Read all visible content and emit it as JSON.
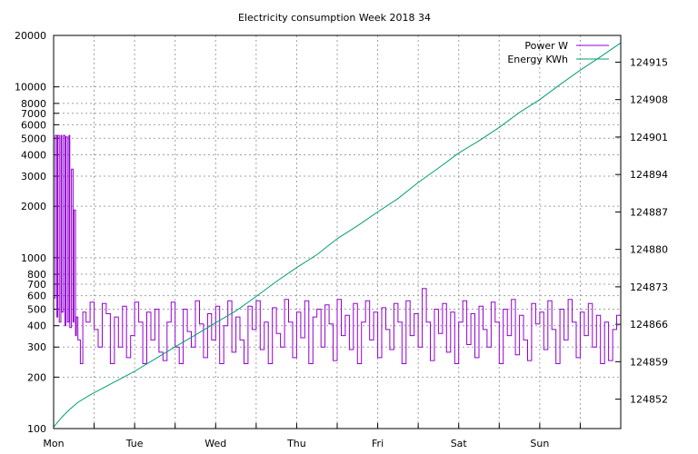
{
  "chart_data": {
    "type": "line",
    "title": "Electricity consumption Week 2018 34",
    "x_ticks": [
      "Mon",
      "Tue",
      "Wed",
      "Thu",
      "Fri",
      "Sat",
      "Sun"
    ],
    "y_left": {
      "scale": "log",
      "range": [
        100,
        20000
      ],
      "tick_labels": [
        "100",
        "200",
        "300",
        "400",
        "500",
        "600",
        "700",
        "800",
        "1000",
        "2000",
        "3000",
        "4000",
        "5000",
        "6000",
        "7000",
        "8000",
        "10000",
        "20000"
      ]
    },
    "y_right": {
      "scale": "linear",
      "range": [
        124846.5,
        124920
      ],
      "tick_labels": [
        "124852",
        "124859",
        "124866",
        "124873",
        "124880",
        "124887",
        "124894",
        "124901",
        "124908",
        "124915"
      ]
    },
    "grid": true,
    "legend_position": "top-right",
    "series": [
      {
        "name": "Power W",
        "color": "#9400d3",
        "axis": "left",
        "x_day": [
          0.0,
          0.02,
          0.04,
          0.05,
          0.07,
          0.09,
          0.1,
          0.12,
          0.14,
          0.15,
          0.17,
          0.19,
          0.2,
          0.22,
          0.24,
          0.25,
          0.27,
          0.28,
          0.3,
          0.33,
          0.36,
          0.4,
          0.45,
          0.5,
          0.55,
          0.6,
          0.65,
          0.7,
          0.75,
          0.8,
          0.85,
          0.9,
          0.95,
          1.0,
          1.05,
          1.1,
          1.15,
          1.2,
          1.25,
          1.3,
          1.35,
          1.4,
          1.45,
          1.5,
          1.55,
          1.6,
          1.65,
          1.7,
          1.75,
          1.8,
          1.85,
          1.9,
          1.95,
          2.0,
          2.05,
          2.1,
          2.15,
          2.2,
          2.25,
          2.3,
          2.35,
          2.4,
          2.45,
          2.5,
          2.55,
          2.6,
          2.65,
          2.7,
          2.75,
          2.8,
          2.85,
          2.9,
          2.95,
          3.0,
          3.05,
          3.1,
          3.15,
          3.2,
          3.25,
          3.3,
          3.35,
          3.4,
          3.45,
          3.5,
          3.55,
          3.6,
          3.65,
          3.7,
          3.75,
          3.8,
          3.85,
          3.9,
          3.95,
          4.0,
          4.05,
          4.1,
          4.15,
          4.2,
          4.25,
          4.3,
          4.35,
          4.4,
          4.45,
          4.5,
          4.55,
          4.6,
          4.65,
          4.7,
          4.75,
          4.8,
          4.85,
          4.9,
          4.95,
          5.0,
          5.05,
          5.1,
          5.15,
          5.2,
          5.25,
          5.3,
          5.35,
          5.4,
          5.45,
          5.5,
          5.55,
          5.6,
          5.65,
          5.7,
          5.75,
          5.8,
          5.85,
          5.9,
          5.95,
          6.0,
          6.05,
          6.1,
          6.15,
          6.2,
          6.25,
          6.3,
          6.35,
          6.4,
          6.45,
          6.5,
          6.55,
          6.6,
          6.65,
          6.7,
          6.75,
          6.8,
          6.85,
          6.9,
          6.95,
          7.0
        ],
        "values": [
          580,
          5200,
          450,
          5200,
          420,
          5200,
          480,
          5200,
          400,
          5100,
          420,
          5200,
          390,
          3300,
          420,
          1900,
          350,
          450,
          330,
          240,
          480,
          420,
          550,
          380,
          300,
          540,
          470,
          240,
          450,
          300,
          520,
          260,
          350,
          550,
          420,
          240,
          480,
          330,
          500,
          280,
          250,
          420,
          550,
          300,
          240,
          500,
          370,
          300,
          560,
          410,
          260,
          470,
          330,
          520,
          240,
          400,
          560,
          280,
          450,
          330,
          240,
          520,
          380,
          560,
          290,
          420,
          240,
          510,
          360,
          300,
          570,
          420,
          260,
          480,
          340,
          560,
          240,
          450,
          500,
          300,
          530,
          410,
          250,
          570,
          350,
          460,
          290,
          540,
          240,
          420,
          560,
          330,
          480,
          260,
          510,
          380,
          290,
          540,
          420,
          240,
          560,
          350,
          470,
          300,
          660,
          420,
          250,
          500,
          360,
          540,
          280,
          480,
          240,
          420,
          560,
          310,
          470,
          260,
          520,
          380,
          300,
          550,
          420,
          240,
          500,
          350,
          570,
          270,
          460,
          330,
          250,
          540,
          410,
          480,
          290,
          560,
          380,
          240,
          500,
          330,
          570,
          420,
          260,
          480,
          350,
          540,
          300,
          460,
          240,
          420,
          250,
          380,
          460,
          420
        ]
      },
      {
        "name": "Energy KWh",
        "color": "#009e73",
        "axis": "right",
        "x_day": [
          0.0,
          0.1,
          0.2,
          0.3,
          0.45,
          0.6,
          0.8,
          1.0,
          1.25,
          1.5,
          1.75,
          2.0,
          2.25,
          2.5,
          2.75,
          3.0,
          3.25,
          3.5,
          3.75,
          4.0,
          4.25,
          4.5,
          4.75,
          5.0,
          5.25,
          5.5,
          5.75,
          6.0,
          6.25,
          6.5,
          6.75,
          7.0
        ],
        "values": [
          124846.8,
          124848.6,
          124850.1,
          124851.4,
          124852.8,
          124854.0,
          124855.6,
          124857.2,
          124859.5,
          124861.8,
          124864.0,
          124866.3,
          124868.5,
          124871.2,
          124874.0,
          124876.6,
          124879.0,
          124882.0,
          124884.4,
          124887.0,
          124889.5,
          124892.5,
          124895.2,
          124898.0,
          124900.3,
          124902.8,
          124905.6,
          124908.0,
          124910.8,
          124913.5,
          124916.0,
          124918.6
        ]
      }
    ]
  }
}
